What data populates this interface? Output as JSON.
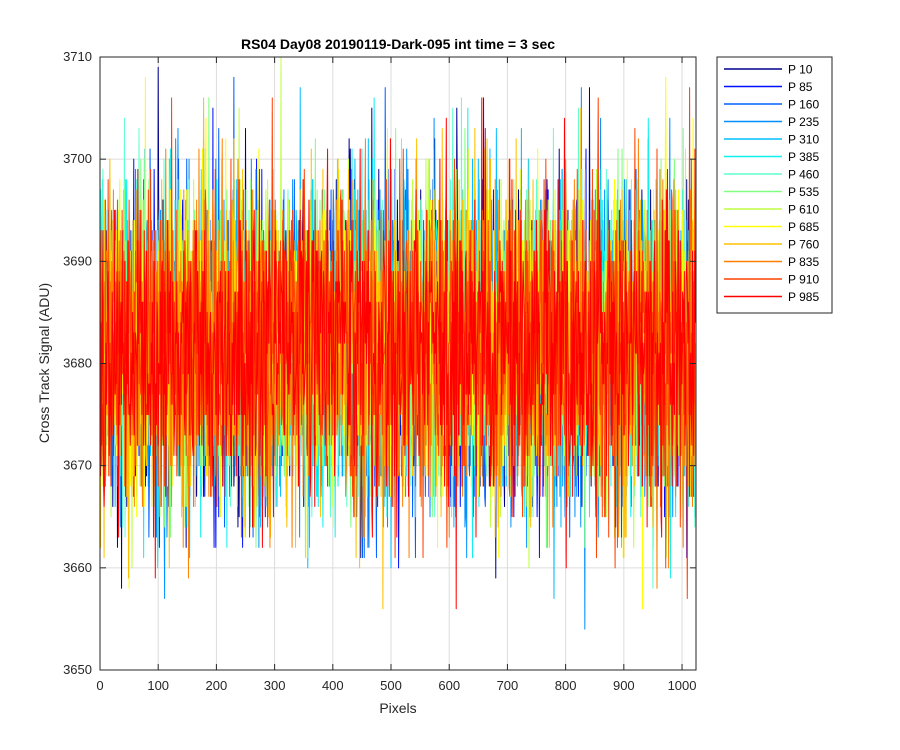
{
  "chart_data": {
    "type": "line",
    "title": "RS04 Day08 20190119-Dark-095 int time = 3 sec",
    "xlabel": "Pixels",
    "ylabel": "Cross Track Signal (ADU)",
    "xlim": [
      0,
      1024
    ],
    "ylim": [
      3650,
      3710
    ],
    "xticks": [
      0,
      100,
      200,
      300,
      400,
      500,
      600,
      700,
      800,
      900,
      1000
    ],
    "yticks": [
      3650,
      3660,
      3670,
      3680,
      3690,
      3700,
      3710
    ],
    "xtick_labels": [
      "0",
      "100",
      "200",
      "300",
      "400",
      "500",
      "600",
      "700",
      "800",
      "900",
      "1000"
    ],
    "ytick_labels": [
      "3650",
      "3660",
      "3670",
      "3680",
      "3690",
      "3700",
      "3710"
    ],
    "grid": true,
    "legend_position": "outside-top-right",
    "x_range": [
      0,
      1023
    ],
    "noise_model": {
      "mean": 3681.5,
      "std": 7.5
    },
    "series": [
      {
        "name": "P 10",
        "color": "#00008f"
      },
      {
        "name": "P 85",
        "color": "#0010ff"
      },
      {
        "name": "P 160",
        "color": "#0060ff"
      },
      {
        "name": "P 235",
        "color": "#0090ff"
      },
      {
        "name": "P 310",
        "color": "#00bfff"
      },
      {
        "name": "P 385",
        "color": "#10f0ef"
      },
      {
        "name": "P 460",
        "color": "#60ffcf"
      },
      {
        "name": "P 535",
        "color": "#80ff80"
      },
      {
        "name": "P 610",
        "color": "#bfff40"
      },
      {
        "name": "P 685",
        "color": "#ffff00"
      },
      {
        "name": "P 760",
        "color": "#ffc000"
      },
      {
        "name": "P 835",
        "color": "#ff8000"
      },
      {
        "name": "P 910",
        "color": "#ff4000"
      },
      {
        "name": "P 985",
        "color": "#ff0000"
      }
    ]
  }
}
